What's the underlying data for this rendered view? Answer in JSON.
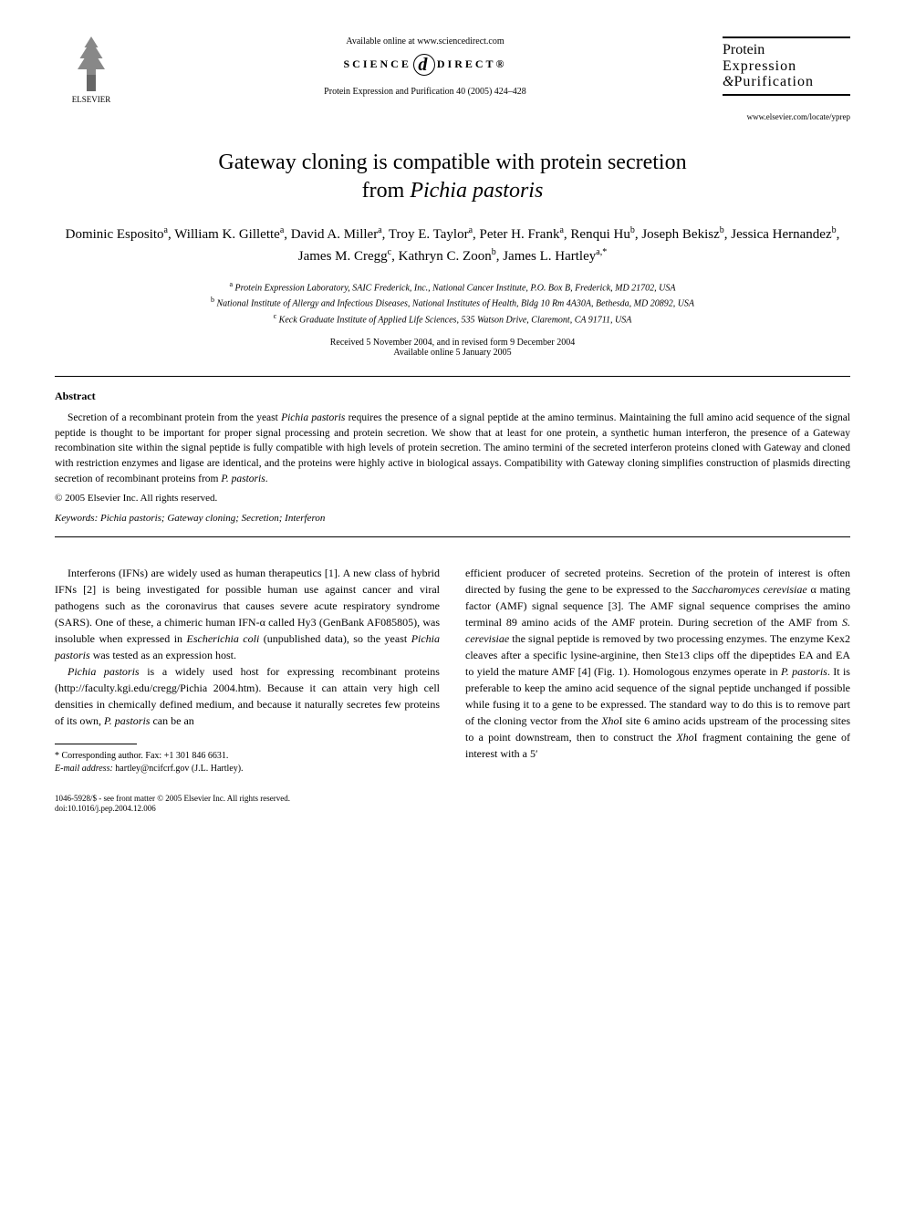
{
  "header": {
    "publisher": "ELSEVIER",
    "available": "Available online at www.sciencedirect.com",
    "sd_left": "SCIENCE",
    "sd_right": "DIRECT®",
    "citation": "Protein Expression and Purification 40 (2005) 424–428",
    "journal_line1": "Protein",
    "journal_line2": "Expression",
    "journal_line3": "Purification",
    "journal_amp": "&",
    "journal_url": "www.elsevier.com/locate/yprep"
  },
  "title": {
    "line1": "Gateway cloning is compatible with protein secretion",
    "line2_pre": "from ",
    "line2_italic": "Pichia pastoris"
  },
  "authors": "Dominic Esposito<sup>a</sup>, William K. Gillette<sup>a</sup>, David A. Miller<sup>a</sup>, Troy E. Taylor<sup>a</sup>, Peter H. Frank<sup>a</sup>, Renqui Hu<sup>b</sup>, Joseph Bekisz<sup>b</sup>, Jessica Hernandez<sup>b</sup>, James M. Cregg<sup>c</sup>, Kathryn C. Zoon<sup>b</sup>, James L. Hartley<sup>a,*</sup>",
  "affiliations": {
    "a": "Protein Expression Laboratory, SAIC Frederick, Inc., National Cancer Institute, P.O. Box B, Frederick, MD 21702, USA",
    "b": "National Institute of Allergy and Infectious Diseases, National Institutes of Health, Bldg 10 Rm 4A30A, Bethesda, MD 20892, USA",
    "c": "Keck Graduate Institute of Applied Life Sciences, 535 Watson Drive, Claremont, CA 91711, USA"
  },
  "dates": {
    "received": "Received 5 November 2004, and in revised form 9 December 2004",
    "online": "Available online 5 January 2005"
  },
  "abstract": {
    "heading": "Abstract",
    "text": "Secretion of a recombinant protein from the yeast <span class=\"italic\">Pichia pastoris</span> requires the presence of a signal peptide at the amino terminus. Maintaining the full amino acid sequence of the signal peptide is thought to be important for proper signal processing and protein secretion. We show that at least for one protein, a synthetic human interferon, the presence of a Gateway recombination site within the signal peptide is fully compatible with high levels of protein secretion. The amino termini of the secreted interferon proteins cloned with Gateway and cloned with restriction enzymes and ligase are identical, and the proteins were highly active in biological assays. Compatibility with Gateway cloning simplifies construction of plasmids directing secretion of recombinant proteins from <span class=\"italic\">P. pastoris</span>.",
    "copyright": "© 2005 Elsevier Inc. All rights reserved."
  },
  "keywords": {
    "label": "Keywords:",
    "text": " Pichia pastoris; Gateway cloning; Secretion; Interferon"
  },
  "body": {
    "col1_p1": "Interferons (IFNs) are widely used as human therapeutics [1]. A new class of hybrid IFNs [2] is being investigated for possible human use against cancer and viral pathogens such as the coronavirus that causes severe acute respiratory syndrome (SARS). One of these, a chimeric human IFN-α called Hy3 (GenBank AF085805), was insoluble when expressed in <span class=\"italic\">Escherichia coli</span> (unpublished data), so the yeast <span class=\"italic\">Pichia pastoris</span> was tested as an expression host.",
    "col1_p2": "<span class=\"italic\">Pichia pastoris</span> is a widely used host for expressing recombinant proteins (http://faculty.kgi.edu/cregg/Pichia 2004.htm). Because it can attain very high cell densities in chemically defined medium, and because it naturally secretes few proteins of its own, <span class=\"italic\">P. pastoris</span> can be an",
    "col2_p1": "efficient producer of secreted proteins. Secretion of the protein of interest is often directed by fusing the gene to be expressed to the <span class=\"italic\">Saccharomyces cerevisiae</span> α mating factor (AMF) signal sequence [3]. The AMF signal sequence comprises the amino terminal 89 amino acids of the AMF protein. During secretion of the AMF from <span class=\"italic\">S. cerevisiae</span> the signal peptide is removed by two processing enzymes. The enzyme Kex2 cleaves after a specific lysine-arginine, then Ste13 clips off the dipeptides EA and EA to yield the mature AMF [4] (Fig. 1). Homologous enzymes operate in <span class=\"italic\">P. pastoris</span>. It is preferable to keep the amino acid sequence of the signal peptide unchanged if possible while fusing it to a gene to be expressed. The standard way to do this is to remove part of the cloning vector from the <span class=\"italic\">Xho</span>I site 6 amino acids upstream of the processing sites to a point downstream, then to construct the <span class=\"italic\">Xho</span>I fragment containing the gene of interest with a 5′"
  },
  "footnotes": {
    "corr": "Corresponding author. Fax: +1 301 846 6631.",
    "email_label": "E-mail address:",
    "email": " hartley@ncifcrf.gov (J.L. Hartley)."
  },
  "footer": {
    "line1": "1046-5928/$ - see front matter © 2005 Elsevier Inc. All rights reserved.",
    "line2": "doi:10.1016/j.pep.2004.12.006"
  }
}
